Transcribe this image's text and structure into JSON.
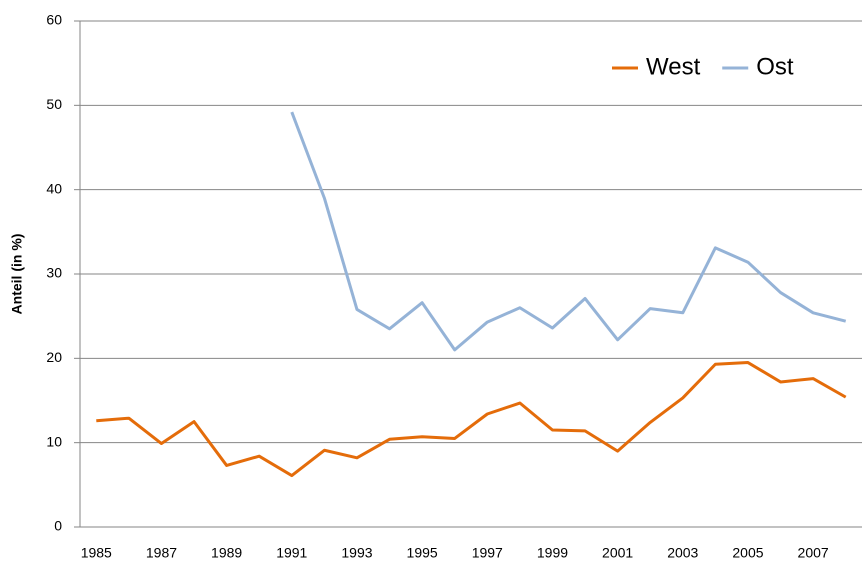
{
  "chart_data": {
    "type": "line",
    "y_label": "Anteil (in %)",
    "x": [
      1985,
      1986,
      1987,
      1988,
      1989,
      1990,
      1991,
      1992,
      1993,
      1994,
      1995,
      1996,
      1997,
      1998,
      1999,
      2000,
      2001,
      2002,
      2003,
      2004,
      2005,
      2006,
      2007,
      2008
    ],
    "series": [
      {
        "name": "West",
        "color": "#e46c0a",
        "values": [
          12.6,
          12.9,
          9.9,
          12.5,
          7.3,
          8.4,
          6.1,
          9.1,
          8.2,
          10.4,
          10.7,
          10.5,
          13.4,
          14.7,
          11.5,
          11.4,
          9.0,
          12.4,
          15.3,
          19.3,
          19.5,
          17.2,
          17.6,
          15.4
        ]
      },
      {
        "name": "Ost",
        "color": "#95b3d7",
        "values": [
          null,
          null,
          null,
          null,
          null,
          null,
          49.2,
          39.0,
          25.8,
          23.5,
          26.6,
          21.0,
          24.3,
          26.0,
          23.6,
          27.1,
          22.2,
          25.9,
          25.4,
          33.1,
          31.4,
          27.8,
          25.4,
          24.4
        ]
      }
    ],
    "xlim": [
      1984.5,
      2008.5
    ],
    "xticks": [
      1985,
      1987,
      1989,
      1991,
      1993,
      1995,
      1997,
      1999,
      2001,
      2003,
      2005,
      2007
    ],
    "ylim": [
      0,
      60
    ],
    "yticks": [
      0,
      10,
      20,
      30,
      40,
      50,
      60
    ],
    "grid": true,
    "legend": "upper right"
  }
}
